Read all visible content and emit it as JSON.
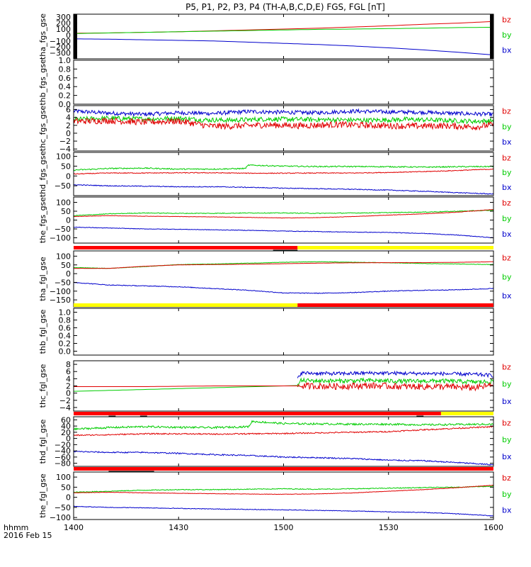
{
  "figure": {
    "title": "P5, P1, P2, P3, P4 (TH-A,B,C,D,E) FGS, FGL [nT]",
    "x_axis": {
      "label_line1": "hhmm",
      "label_line2": "2016 Feb 15",
      "ticks": [
        "1400",
        "1430",
        "1500",
        "1530",
        "1600"
      ],
      "tick_minutes": [
        0,
        30,
        60,
        90,
        120
      ],
      "range_minutes": [
        0,
        120
      ]
    },
    "colors": {
      "bz": "#e00000",
      "by": "#00cc00",
      "bx": "#0000cc",
      "flag_red": "#ff0000",
      "flag_yellow": "#ffff00",
      "frame": "#000000"
    }
  },
  "chart_data": [
    {
      "type": "line",
      "ylabel": "tha_fgs_gse",
      "ylim": [
        -400,
        350
      ],
      "yticks": [
        300,
        200,
        100,
        0,
        -100,
        -200,
        -300
      ],
      "ytick_labels": [
        "300",
        "200",
        "100",
        "0",
        "−100",
        "−200",
        "−300"
      ],
      "legend": [
        "bz",
        "by",
        "bx"
      ],
      "gaps_minutes": [
        [
          0,
          1
        ],
        [
          119,
          120
        ]
      ],
      "series": [
        {
          "name": "bz",
          "x": [
            1,
            10,
            20,
            30,
            40,
            50,
            60,
            70,
            80,
            90,
            100,
            110,
            119
          ],
          "y": [
            30,
            35,
            45,
            55,
            70,
            85,
            100,
            115,
            135,
            155,
            180,
            200,
            225
          ],
          "noise": 0
        },
        {
          "name": "by",
          "x": [
            1,
            10,
            20,
            30,
            40,
            50,
            60,
            70,
            80,
            90,
            100,
            110,
            119
          ],
          "y": [
            25,
            35,
            45,
            55,
            65,
            75,
            85,
            95,
            100,
            108,
            115,
            125,
            130
          ],
          "noise": 0
        },
        {
          "name": "bx",
          "x": [
            1,
            10,
            20,
            30,
            40,
            50,
            60,
            70,
            80,
            90,
            100,
            110,
            119
          ],
          "y": [
            -65,
            -70,
            -80,
            -90,
            -100,
            -120,
            -140,
            -160,
            -185,
            -215,
            -250,
            -290,
            -330
          ],
          "noise": 0
        }
      ]
    },
    {
      "type": "line",
      "ylabel": "thb_fgs_gse",
      "ylim": [
        0,
        1
      ],
      "yticks": [
        1.0,
        0.8,
        0.6,
        0.4,
        0.2,
        0.0
      ],
      "ytick_labels": [
        "1.0",
        "0.8",
        "0.6",
        "0.4",
        "0.2",
        "0.0"
      ],
      "legend": [],
      "series": []
    },
    {
      "type": "line",
      "ylabel": "thc_fgs_gse",
      "ylim": [
        -4.5,
        7
      ],
      "yticks": [
        6,
        4,
        2,
        0,
        -2,
        -4
      ],
      "ytick_labels": [
        "6",
        "4",
        "2",
        "0",
        "−2",
        "−4"
      ],
      "legend": [
        "bz",
        "by",
        "bx"
      ],
      "series": [
        {
          "name": "bx",
          "x": [
            0,
            10,
            20,
            30,
            40,
            50,
            60,
            70,
            80,
            90,
            100,
            110,
            120
          ],
          "y": [
            5.6,
            5.1,
            4.8,
            5.2,
            5.0,
            5.5,
            5.3,
            5.2,
            5.6,
            5.4,
            5.3,
            5.0,
            4.8
          ],
          "noise": 0.5
        },
        {
          "name": "by",
          "x": [
            0,
            10,
            20,
            30,
            37,
            45,
            55,
            65,
            75,
            85,
            95,
            105,
            115,
            120
          ],
          "y": [
            3.5,
            3.8,
            3.6,
            3.8,
            3.4,
            3.3,
            3.6,
            3.5,
            3.4,
            3.3,
            3.5,
            3.3,
            3.0,
            3.2
          ],
          "noise": 0.6
        },
        {
          "name": "bz",
          "x": [
            0,
            10,
            20,
            30,
            39,
            45,
            55,
            65,
            75,
            85,
            95,
            105,
            115,
            120
          ],
          "y": [
            3.0,
            3.2,
            2.8,
            3.1,
            1.8,
            1.8,
            2.1,
            1.9,
            2.2,
            2.0,
            1.8,
            1.9,
            1.6,
            2.2
          ],
          "noise": 0.8
        }
      ]
    },
    {
      "type": "line",
      "ylabel": "thd_fgs_gse",
      "ylim": [
        -100,
        120
      ],
      "yticks": [
        100,
        50,
        0,
        -50
      ],
      "ytick_labels": [
        "100",
        "50",
        "0",
        "−50"
      ],
      "legend": [
        "bz",
        "by",
        "bx"
      ],
      "series": [
        {
          "name": "by",
          "x": [
            0,
            10,
            20,
            30,
            40,
            49,
            50,
            60,
            70,
            80,
            90,
            100,
            110,
            120
          ],
          "y": [
            30,
            38,
            40,
            35,
            35,
            38,
            55,
            50,
            48,
            48,
            47,
            45,
            47,
            48
          ],
          "noise": 3
        },
        {
          "name": "bz",
          "x": [
            0,
            10,
            20,
            30,
            40,
            50,
            60,
            70,
            80,
            90,
            100,
            110,
            120
          ],
          "y": [
            10,
            15,
            15,
            16,
            16,
            14,
            14,
            15,
            15,
            18,
            22,
            28,
            35
          ],
          "noise": 2
        },
        {
          "name": "bx",
          "x": [
            0,
            10,
            20,
            30,
            40,
            50,
            60,
            70,
            80,
            90,
            100,
            110,
            120
          ],
          "y": [
            -45,
            -50,
            -52,
            -55,
            -55,
            -58,
            -62,
            -65,
            -68,
            -72,
            -78,
            -85,
            -92
          ],
          "noise": 2
        }
      ]
    },
    {
      "type": "line",
      "ylabel": "the_fgs_gse",
      "ylim": [
        -130,
        130
      ],
      "yticks": [
        100,
        50,
        0,
        -50,
        -100
      ],
      "ytick_labels": [
        "100",
        "50",
        "0",
        "−50",
        "−100"
      ],
      "legend": [
        "bz",
        "by",
        "bx"
      ],
      "series": [
        {
          "name": "by",
          "x": [
            0,
            10,
            20,
            30,
            40,
            50,
            60,
            70,
            80,
            90,
            100,
            110,
            120
          ],
          "y": [
            25,
            35,
            40,
            38,
            38,
            40,
            40,
            38,
            40,
            42,
            45,
            50,
            55
          ],
          "noise": 2
        },
        {
          "name": "bz",
          "x": [
            0,
            10,
            20,
            30,
            40,
            50,
            60,
            70,
            80,
            90,
            100,
            110,
            120
          ],
          "y": [
            20,
            25,
            22,
            20,
            18,
            15,
            12,
            14,
            20,
            28,
            35,
            45,
            60
          ],
          "noise": 1
        },
        {
          "name": "bx",
          "x": [
            0,
            10,
            20,
            30,
            40,
            50,
            60,
            70,
            80,
            90,
            100,
            110,
            120
          ],
          "y": [
            -40,
            -45,
            -50,
            -52,
            -55,
            -58,
            -62,
            -65,
            -68,
            -70,
            -75,
            -85,
            -100
          ],
          "noise": 1.5
        }
      ]
    },
    {
      "type": "line",
      "ylabel": "tha_fgl_gse",
      "ylim": [
        -190,
        130
      ],
      "yticks": [
        100,
        50,
        0,
        -50,
        -100,
        -150
      ],
      "ytick_labels": [
        "100",
        "50",
        "0",
        "−50",
        "−100",
        "−150"
      ],
      "legend": [
        "bz",
        "by",
        "bx"
      ],
      "flag_bar": [
        {
          "start": 0,
          "end": 64,
          "color": "flag_red"
        },
        {
          "start": 64,
          "end": 120,
          "color": "flag_yellow"
        }
      ],
      "tick_marks": [
        {
          "start": 57,
          "end": 64
        }
      ],
      "series": [
        {
          "name": "by",
          "x": [
            0,
            10,
            20,
            30,
            40,
            50,
            60,
            70,
            80,
            90,
            100,
            110,
            120
          ],
          "y": [
            35,
            30,
            40,
            52,
            55,
            60,
            65,
            68,
            65,
            62,
            58,
            55,
            52
          ],
          "noise": 1
        },
        {
          "name": "bz",
          "x": [
            0,
            10,
            20,
            30,
            40,
            50,
            60,
            70,
            80,
            90,
            100,
            110,
            120
          ],
          "y": [
            30,
            30,
            42,
            50,
            52,
            54,
            57,
            60,
            62,
            63,
            63,
            65,
            68
          ],
          "noise": 0.5
        },
        {
          "name": "bx",
          "x": [
            0,
            10,
            20,
            30,
            40,
            50,
            60,
            70,
            80,
            90,
            100,
            110,
            120
          ],
          "y": [
            -50,
            -65,
            -70,
            -75,
            -85,
            -95,
            -110,
            -112,
            -108,
            -100,
            -95,
            -92,
            -85
          ],
          "noise": 2
        }
      ]
    },
    {
      "type": "line",
      "ylabel": "thb_fgl_gse",
      "ylim": [
        -0.1,
        1.1
      ],
      "yticks": [
        1.0,
        0.8,
        0.6,
        0.4,
        0.2,
        0.0
      ],
      "ytick_labels": [
        "1.0",
        "0.8",
        "0.6",
        "0.4",
        "0.2",
        "0.0"
      ],
      "legend": [],
      "flag_bar": [
        {
          "start": 0,
          "end": 64,
          "color": "flag_yellow"
        },
        {
          "start": 64,
          "end": 120,
          "color": "flag_red"
        }
      ],
      "series": []
    },
    {
      "type": "line",
      "ylabel": "thc_fgl_gse",
      "ylim": [
        -5,
        9
      ],
      "yticks": [
        8,
        6,
        4,
        2,
        0,
        -2,
        -4
      ],
      "ytick_labels": [
        "8",
        "6",
        "4",
        "2",
        "0",
        "−2",
        "−4"
      ],
      "legend": [
        "bz",
        "by",
        "bx"
      ],
      "series": [
        {
          "name": "by",
          "x": [
            0,
            20,
            40,
            60,
            64
          ],
          "y": [
            0.5,
            1.0,
            1.5,
            2.0,
            2.1
          ],
          "noise": 0
        },
        {
          "name": "bz",
          "x": [
            0,
            20,
            40,
            60,
            64
          ],
          "y": [
            1.8,
            1.8,
            2.0,
            2.0,
            2.0
          ],
          "noise": 0
        },
        {
          "name": "bx",
          "x": [
            64,
            65,
            75,
            85,
            95,
            105,
            115,
            120
          ],
          "y": [
            4.0,
            5.6,
            5.4,
            5.6,
            5.5,
            5.4,
            5.2,
            4.9
          ],
          "noise": 0.5
        },
        {
          "name": "by",
          "x": [
            64,
            65,
            75,
            85,
            95,
            105,
            115,
            120
          ],
          "y": [
            2.1,
            3.5,
            3.4,
            3.5,
            3.3,
            3.4,
            3.1,
            3.2
          ],
          "noise": 0.6
        },
        {
          "name": "bz",
          "x": [
            64,
            65,
            75,
            85,
            95,
            105,
            115,
            120
          ],
          "y": [
            2.0,
            2.0,
            1.9,
            2.1,
            1.8,
            1.8,
            1.5,
            2.3
          ],
          "noise": 0.9
        }
      ]
    },
    {
      "type": "line",
      "ylabel": "thd_fgl_gse",
      "ylim": [
        -90,
        70
      ],
      "yticks": [
        60,
        40,
        20,
        0,
        -20,
        -40,
        -60,
        -80
      ],
      "ytick_labels": [
        "60",
        "40",
        "20",
        "0",
        "−20",
        "−40",
        "−60",
        "−80"
      ],
      "legend": [
        "bz",
        "by",
        "bx"
      ],
      "flag_bar": [
        {
          "start": 0,
          "end": 105,
          "color": "flag_red"
        },
        {
          "start": 105,
          "end": 120,
          "color": "flag_yellow"
        }
      ],
      "tick_marks": [
        {
          "start": 10,
          "end": 12
        },
        {
          "start": 19,
          "end": 21
        },
        {
          "start": 98,
          "end": 100
        }
      ],
      "series": [
        {
          "name": "by",
          "x": [
            0,
            10,
            20,
            30,
            40,
            50,
            51,
            60,
            70,
            80,
            90,
            100,
            110,
            120
          ],
          "y": [
            30,
            35,
            38,
            36,
            35,
            38,
            55,
            48,
            47,
            46,
            46,
            44,
            45,
            46
          ],
          "noise": 3
        },
        {
          "name": "bz",
          "x": [
            0,
            10,
            20,
            30,
            40,
            50,
            60,
            70,
            80,
            90,
            100,
            110,
            120
          ],
          "y": [
            10,
            12,
            15,
            15,
            14,
            15,
            16,
            18,
            20,
            22,
            28,
            33,
            38
          ],
          "noise": 2
        },
        {
          "name": "bx",
          "x": [
            0,
            10,
            20,
            30,
            40,
            50,
            60,
            70,
            80,
            90,
            100,
            110,
            120
          ],
          "y": [
            -42,
            -45,
            -45,
            -48,
            -52,
            -55,
            -60,
            -62,
            -65,
            -70,
            -72,
            -78,
            -85
          ],
          "noise": 2
        }
      ]
    },
    {
      "type": "line",
      "ylabel": "the_fgl_gse",
      "ylim": [
        -110,
        125
      ],
      "yticks": [
        100,
        50,
        0,
        -50,
        -100
      ],
      "ytick_labels": [
        "100",
        "50",
        "0",
        "−50",
        "−100"
      ],
      "legend": [
        "bz",
        "by",
        "bx"
      ],
      "flag_bar": [
        {
          "start": 0,
          "end": 120,
          "color": "flag_red"
        }
      ],
      "tick_marks": [
        {
          "start": 10,
          "end": 23
        }
      ],
      "series": [
        {
          "name": "by",
          "x": [
            0,
            10,
            20,
            30,
            40,
            50,
            60,
            70,
            80,
            90,
            100,
            110,
            120
          ],
          "y": [
            25,
            30,
            35,
            38,
            38,
            40,
            42,
            40,
            42,
            45,
            48,
            50,
            55
          ],
          "noise": 2
        },
        {
          "name": "bz",
          "x": [
            0,
            10,
            20,
            30,
            40,
            50,
            60,
            70,
            80,
            90,
            100,
            110,
            120
          ],
          "y": [
            22,
            25,
            22,
            20,
            18,
            16,
            15,
            17,
            22,
            30,
            38,
            48,
            60
          ],
          "noise": 1
        },
        {
          "name": "bx",
          "x": [
            0,
            10,
            20,
            30,
            40,
            50,
            60,
            70,
            80,
            90,
            100,
            110,
            120
          ],
          "y": [
            -45,
            -50,
            -52,
            -55,
            -58,
            -60,
            -62,
            -65,
            -68,
            -72,
            -75,
            -82,
            -92
          ],
          "noise": 1.5
        }
      ]
    }
  ]
}
